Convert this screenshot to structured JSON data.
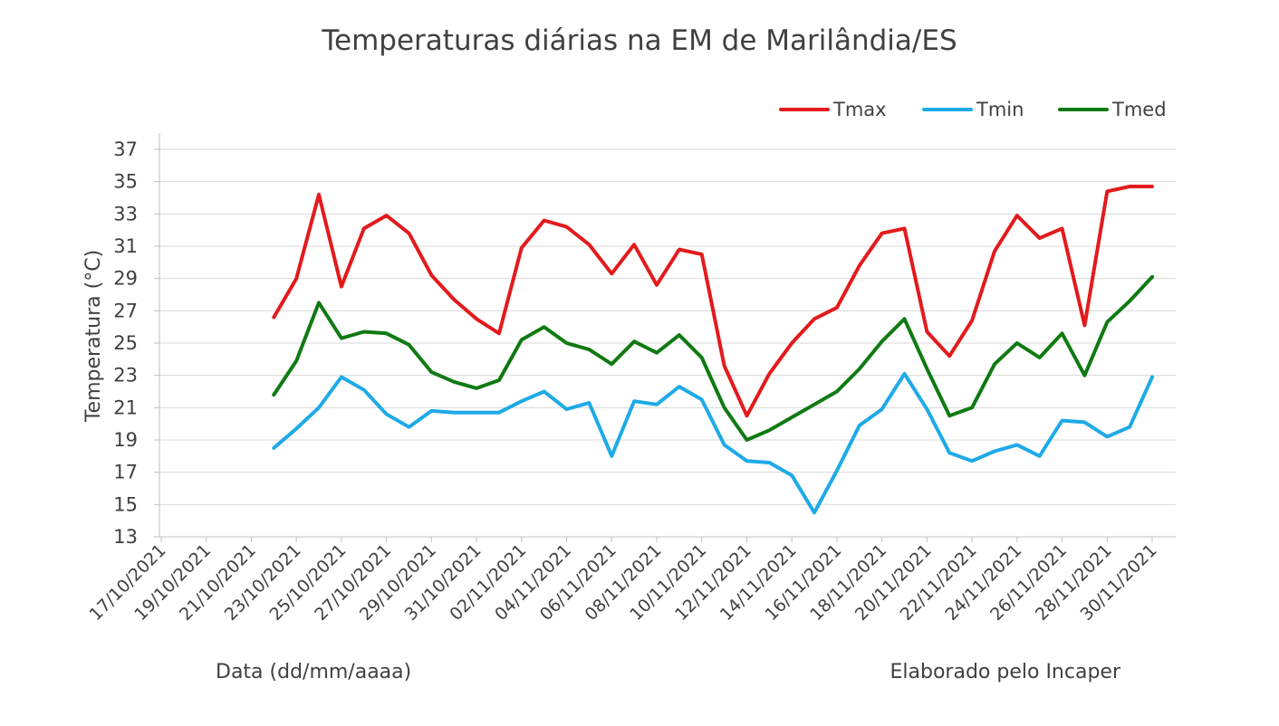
{
  "chart_data": {
    "type": "line",
    "title": "Temperaturas diárias na EM de Marilândia/ES",
    "xlabel": "Data (dd/mm/aaaa)",
    "ylabel": "Temperatura (°C)",
    "note": "Elaborado pelo Incaper",
    "ylim": [
      13,
      37
    ],
    "yticks": [
      13,
      15,
      17,
      19,
      21,
      23,
      25,
      27,
      29,
      31,
      33,
      35,
      37
    ],
    "grid": true,
    "legend_position": "top-right",
    "x_dates": [
      "17/10/2021",
      "18/10/2021",
      "19/10/2021",
      "20/10/2021",
      "21/10/2021",
      "22/10/2021",
      "23/10/2021",
      "24/10/2021",
      "25/10/2021",
      "26/10/2021",
      "27/10/2021",
      "28/10/2021",
      "29/10/2021",
      "30/10/2021",
      "31/10/2021",
      "01/11/2021",
      "02/11/2021",
      "03/11/2021",
      "04/11/2021",
      "05/11/2021",
      "06/11/2021",
      "07/11/2021",
      "08/11/2021",
      "09/11/2021",
      "10/11/2021",
      "11/11/2021",
      "12/11/2021",
      "13/11/2021",
      "14/11/2021",
      "15/11/2021",
      "16/11/2021",
      "17/11/2021",
      "18/11/2021",
      "19/11/2021",
      "20/11/2021",
      "21/11/2021",
      "22/11/2021",
      "23/11/2021",
      "24/11/2021",
      "25/11/2021",
      "26/11/2021",
      "27/11/2021",
      "28/11/2021",
      "29/11/2021",
      "30/11/2021",
      "01/12/2021"
    ],
    "x_tick_labels": [
      "17/10/2021",
      "19/10/2021",
      "21/10/2021",
      "23/10/2021",
      "25/10/2021",
      "27/10/2021",
      "29/10/2021",
      "31/10/2021",
      "02/11/2021",
      "04/11/2021",
      "06/11/2021",
      "08/11/2021",
      "10/11/2021",
      "12/11/2021",
      "14/11/2021",
      "16/11/2021",
      "18/11/2021",
      "20/11/2021",
      "22/11/2021",
      "24/11/2021",
      "26/11/2021",
      "28/11/2021",
      "30/11/2021"
    ],
    "series": [
      {
        "name": "Tmax",
        "color": "#e31a1c",
        "values": [
          null,
          null,
          null,
          null,
          null,
          26.6,
          29.0,
          34.2,
          28.5,
          32.1,
          32.9,
          31.8,
          29.2,
          27.7,
          26.5,
          25.6,
          30.9,
          32.6,
          32.2,
          31.1,
          29.3,
          31.1,
          28.6,
          30.8,
          30.5,
          23.6,
          20.5,
          23.1,
          25.0,
          26.5,
          27.2,
          29.8,
          31.8,
          32.1,
          25.7,
          24.2,
          26.4,
          30.7,
          32.9,
          31.5,
          32.1,
          26.1,
          34.4,
          34.7,
          34.7,
          null
        ]
      },
      {
        "name": "Tmin",
        "color": "#1eaae7",
        "values": [
          null,
          null,
          null,
          null,
          null,
          18.5,
          19.7,
          21.0,
          22.9,
          22.1,
          20.6,
          19.8,
          20.8,
          20.7,
          20.7,
          20.7,
          21.4,
          22.0,
          20.9,
          21.3,
          18.0,
          21.4,
          21.2,
          22.3,
          21.5,
          18.7,
          17.7,
          17.6,
          16.8,
          14.5,
          17.1,
          19.9,
          20.9,
          23.1,
          20.9,
          18.2,
          17.7,
          18.3,
          18.7,
          18.0,
          20.2,
          20.1,
          19.2,
          19.8,
          22.9,
          null
        ]
      },
      {
        "name": "Tmed",
        "color": "#0f7a12",
        "values": [
          null,
          null,
          null,
          null,
          null,
          21.8,
          23.9,
          27.5,
          25.3,
          25.7,
          25.6,
          24.9,
          23.2,
          22.6,
          22.2,
          22.7,
          25.2,
          26.0,
          25.0,
          24.6,
          23.7,
          25.1,
          24.4,
          25.5,
          24.1,
          21.0,
          19.0,
          19.6,
          20.4,
          21.2,
          22.0,
          23.4,
          25.1,
          26.5,
          23.4,
          20.5,
          21.0,
          23.7,
          25.0,
          24.1,
          25.6,
          23.0,
          26.3,
          27.6,
          29.1,
          null
        ]
      }
    ]
  }
}
